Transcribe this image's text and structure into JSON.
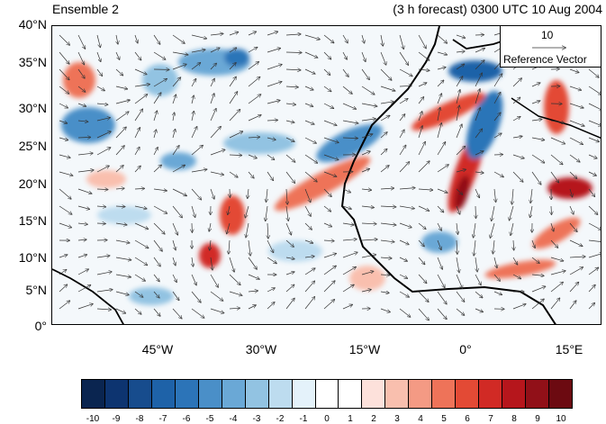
{
  "title": {
    "left": "Ensemble 2",
    "right": "(3 h forecast) 0300 UTC 10 Aug 2004"
  },
  "map": {
    "lon_range": [
      -57,
      20
    ],
    "lat_range": [
      0,
      40
    ],
    "y_ticks": [
      "40°N",
      "35°N",
      "30°N",
      "25°N",
      "20°N",
      "15°N",
      "10°N",
      "5°N",
      "0°"
    ],
    "x_ticks": [
      "45°W",
      "30°W",
      "15°W",
      "0°",
      "15°E"
    ],
    "reference_vector": {
      "magnitude": "10",
      "label": "Reference Vector"
    }
  },
  "colorbar": {
    "labels": [
      "-10",
      "-9",
      "-8",
      "-7",
      "-6",
      "-5",
      "-4",
      "-3",
      "-2",
      "-1",
      "0",
      "1",
      "2",
      "3",
      "4",
      "5",
      "6",
      "7",
      "8",
      "9",
      "10"
    ],
    "colors": [
      "#0a2550",
      "#0d3470",
      "#174c8d",
      "#1e62a8",
      "#2c74b8",
      "#4a8fc8",
      "#6aa8d6",
      "#92c3e2",
      "#bddcef",
      "#e4f2fa",
      "#ffffff",
      "#ffffff",
      "#fde1db",
      "#f9bfae",
      "#f49a84",
      "#ee7359",
      "#e34a35",
      "#d12a25",
      "#b6161c",
      "#911018",
      "#6c0a11"
    ]
  }
}
